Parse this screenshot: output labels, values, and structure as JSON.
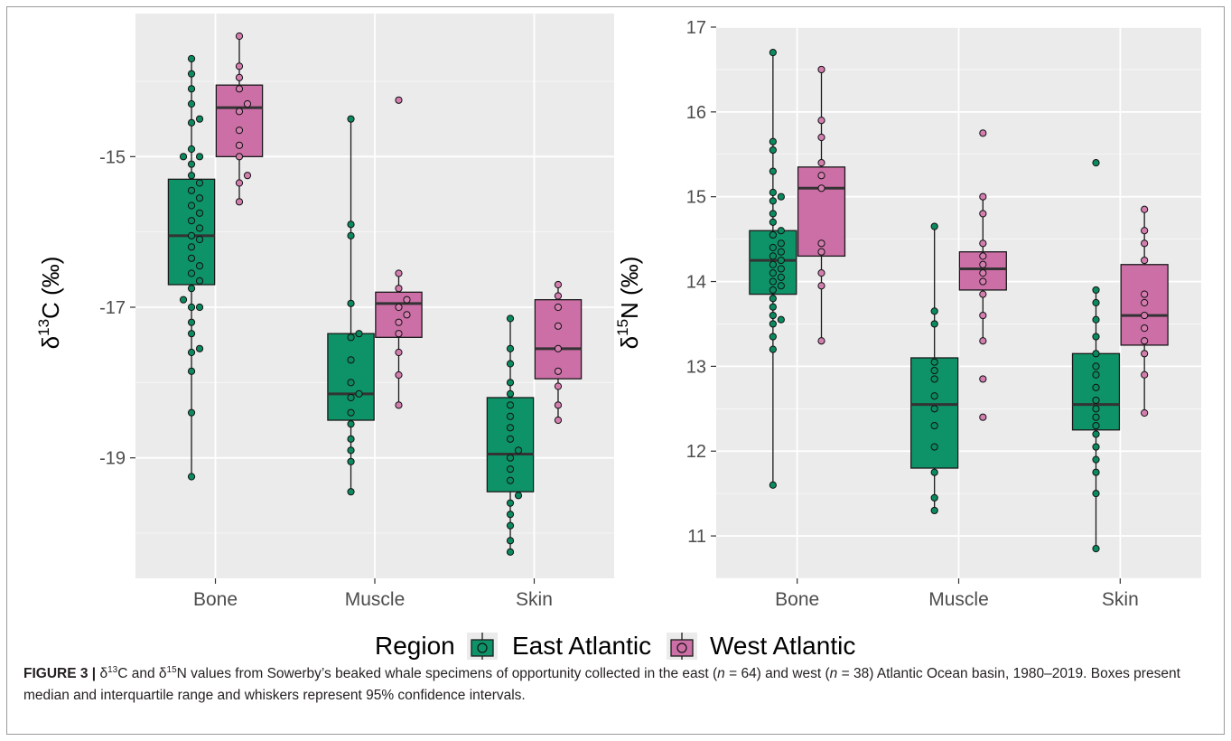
{
  "colors": {
    "panel_bg": "#ebebeb",
    "grid": "#ffffff",
    "east": "#0e9368",
    "west": "#cc6fa6",
    "point_east": "#0c8a5f",
    "point_west": "#d47eb0",
    "outline": "#1a1a1a"
  },
  "legend": {
    "title": "Region",
    "items": [
      {
        "label": "East Atlantic",
        "color": "#0e9368"
      },
      {
        "label": "West Atlantic",
        "color": "#cc6fa6"
      }
    ]
  },
  "caption": {
    "label": "FIGURE 3 |",
    "delta": "δ",
    "c_sup": "13",
    "c_txt": "C and ",
    "n_sup": "15",
    "n_txt": "N values from Sowerby’s beaked whale specimens of opportunity collected in the east (",
    "n1": "n",
    "eq1": " = 64) and west (",
    "n2": "n",
    "eq2": " = 38) Atlantic Ocean basin, 1980–2019. Boxes present median and interquartile range and whiskers represent 95% confidence intervals."
  },
  "chart_data": [
    {
      "type": "box",
      "ylabel": {
        "main": "δ",
        "sup": "13",
        "rest": "C (‰)"
      },
      "ylim": [
        -20.6,
        -13.1
      ],
      "y_ticks": [
        -19,
        -17,
        -15
      ],
      "y_tick_labels": [
        "-19",
        "-17",
        "-15"
      ],
      "categories": [
        "Bone",
        "Muscle",
        "Skin"
      ],
      "series": [
        {
          "name": "East Atlantic",
          "boxes": [
            {
              "category": "Bone",
              "whisker_low": -19.25,
              "q1": -16.7,
              "median": -16.05,
              "q3": -15.3,
              "whisker_high": -13.7,
              "points": [
                -13.7,
                -13.9,
                -14.1,
                -14.3,
                -14.5,
                -14.55,
                -14.9,
                -15.0,
                -15.0,
                -15.1,
                -15.25,
                -15.35,
                -15.45,
                -15.55,
                -15.65,
                -15.75,
                -15.85,
                -15.95,
                -16.05,
                -16.1,
                -16.2,
                -16.35,
                -16.45,
                -16.55,
                -16.65,
                -16.75,
                -16.9,
                -17.0,
                -17.0,
                -17.2,
                -17.35,
                -17.55,
                -17.6,
                -17.85,
                -18.4,
                -19.25
              ]
            },
            {
              "category": "Muscle",
              "whisker_low": -19.45,
              "q1": -18.5,
              "median": -18.15,
              "q3": -17.35,
              "whisker_high": -14.5,
              "points": [
                -14.5,
                -15.9,
                -16.05,
                -16.95,
                -17.35,
                -17.4,
                -17.7,
                -18.0,
                -18.15,
                -18.2,
                -18.4,
                -18.55,
                -18.75,
                -18.9,
                -19.05,
                -19.45
              ]
            },
            {
              "category": "Skin",
              "whisker_low": -20.25,
              "q1": -19.45,
              "median": -18.95,
              "q3": -18.2,
              "whisker_high": -17.15,
              "points": [
                -17.15,
                -17.55,
                -17.75,
                -18.0,
                -18.15,
                -18.3,
                -18.45,
                -18.6,
                -18.75,
                -18.9,
                -19.0,
                -19.15,
                -19.3,
                -19.5,
                -19.6,
                -19.75,
                -19.9,
                -20.1,
                -20.25
              ]
            }
          ]
        },
        {
          "name": "West Atlantic",
          "boxes": [
            {
              "category": "Bone",
              "whisker_low": -15.6,
              "q1": -15.0,
              "median": -14.35,
              "q3": -14.05,
              "whisker_high": -13.4,
              "points": [
                -13.4,
                -13.8,
                -13.95,
                -14.1,
                -14.3,
                -14.4,
                -14.65,
                -14.85,
                -15.0,
                -15.25,
                -15.35,
                -15.6
              ]
            },
            {
              "category": "Muscle",
              "whisker_low": -18.3,
              "q1": -17.4,
              "median": -16.95,
              "q3": -16.8,
              "whisker_high": -16.55,
              "points": [
                -14.25,
                -16.55,
                -16.75,
                -16.9,
                -17.0,
                -17.1,
                -17.2,
                -17.35,
                -17.6,
                -17.9,
                -18.3
              ]
            },
            {
              "category": "Skin",
              "whisker_low": -18.5,
              "q1": -17.95,
              "median": -17.55,
              "q3": -16.9,
              "whisker_high": -16.7,
              "points": [
                -16.7,
                -16.85,
                -17.0,
                -17.25,
                -17.55,
                -17.85,
                -18.05,
                -18.3,
                -18.5
              ]
            }
          ]
        }
      ]
    },
    {
      "type": "box",
      "ylabel": {
        "main": "δ",
        "sup": "15",
        "rest": "N (‰)"
      },
      "ylim": [
        10.5,
        17.0
      ],
      "y_ticks": [
        11,
        12,
        13,
        14,
        15,
        16,
        17
      ],
      "y_tick_labels": [
        "11",
        "12",
        "13",
        "14",
        "15",
        "16",
        "17"
      ],
      "categories": [
        "Bone",
        "Muscle",
        "Skin"
      ],
      "series": [
        {
          "name": "East Atlantic",
          "boxes": [
            {
              "category": "Bone",
              "whisker_low": 11.6,
              "q1": 13.85,
              "median": 14.25,
              "q3": 14.6,
              "whisker_high": 16.7,
              "points": [
                16.7,
                15.65,
                15.55,
                15.3,
                15.05,
                15.0,
                14.95,
                14.8,
                14.7,
                14.6,
                14.55,
                14.45,
                14.4,
                14.35,
                14.3,
                14.25,
                14.2,
                14.15,
                14.1,
                14.05,
                14.0,
                13.95,
                13.9,
                13.8,
                13.7,
                13.6,
                13.55,
                13.5,
                13.35,
                13.2,
                11.6
              ]
            },
            {
              "category": "Muscle",
              "whisker_low": 11.3,
              "q1": 11.8,
              "median": 12.55,
              "q3": 13.1,
              "whisker_high": 14.65,
              "points": [
                14.65,
                13.65,
                13.5,
                13.05,
                12.95,
                12.85,
                12.65,
                12.5,
                12.3,
                12.05,
                11.75,
                11.45,
                11.3
              ]
            },
            {
              "category": "Skin",
              "whisker_low": 10.85,
              "q1": 12.25,
              "median": 12.55,
              "q3": 13.15,
              "whisker_high": 13.9,
              "points": [
                15.4,
                13.9,
                13.75,
                13.55,
                13.35,
                13.15,
                13.0,
                12.9,
                12.75,
                12.6,
                12.5,
                12.4,
                12.3,
                12.2,
                12.05,
                11.9,
                11.75,
                11.5,
                10.85
              ]
            }
          ]
        },
        {
          "name": "West Atlantic",
          "boxes": [
            {
              "category": "Bone",
              "whisker_low": 13.3,
              "q1": 14.3,
              "median": 15.1,
              "q3": 15.35,
              "whisker_high": 16.5,
              "points": [
                16.5,
                15.9,
                15.7,
                15.4,
                15.25,
                15.1,
                14.45,
                14.35,
                14.1,
                13.95,
                13.3
              ]
            },
            {
              "category": "Muscle",
              "whisker_low": 13.3,
              "q1": 13.9,
              "median": 14.15,
              "q3": 14.35,
              "whisker_high": 15.0,
              "points": [
                15.75,
                15.0,
                14.8,
                14.45,
                14.3,
                14.2,
                14.1,
                14.0,
                13.85,
                13.6,
                13.3,
                12.85,
                12.4
              ]
            },
            {
              "category": "Skin",
              "whisker_low": 12.45,
              "q1": 13.25,
              "median": 13.6,
              "q3": 14.2,
              "whisker_high": 14.85,
              "points": [
                14.85,
                14.6,
                14.45,
                14.25,
                13.85,
                13.75,
                13.6,
                13.45,
                13.3,
                13.15,
                12.9,
                12.45
              ]
            }
          ]
        }
      ]
    }
  ]
}
